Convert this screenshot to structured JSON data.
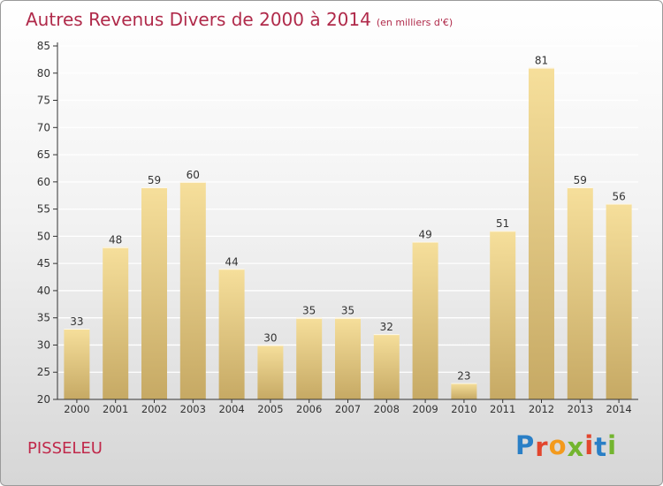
{
  "title": "Autres Revenus Divers de 2000 à 2014",
  "subtitle": "(en milliers d'€)",
  "place": "PISSELEU",
  "logo": {
    "text": "Proxiti",
    "colors": [
      "#2a7fc6",
      "#e2462e",
      "#f39a1d",
      "#73b52f",
      "#e2462e",
      "#2a7fc6",
      "#73b52f"
    ]
  },
  "colors": {
    "title": "#b02a4a",
    "bar_top": "#f6df9b",
    "bar_bottom": "#c6a964",
    "axis": "#333333",
    "grid": "#ffffff"
  },
  "chart_data": {
    "type": "bar",
    "categories": [
      "2000",
      "2001",
      "2002",
      "2003",
      "2004",
      "2005",
      "2006",
      "2007",
      "2008",
      "2009",
      "2010",
      "2011",
      "2012",
      "2013",
      "2014"
    ],
    "values": [
      33,
      48,
      59,
      60,
      44,
      30,
      35,
      35,
      32,
      49,
      23,
      51,
      81,
      59,
      56
    ],
    "data_labels": [
      "33",
      "48",
      "59",
      "60",
      "44",
      "30",
      "35",
      "35",
      "32",
      "49",
      "23",
      "51",
      "81",
      "59",
      "56"
    ],
    "y_ticks": [
      20,
      25,
      30,
      35,
      40,
      45,
      50,
      55,
      60,
      65,
      70,
      75,
      80,
      85
    ],
    "ylim": [
      20,
      85
    ],
    "grid": true,
    "legend": false,
    "xlabel": "",
    "ylabel": ""
  }
}
